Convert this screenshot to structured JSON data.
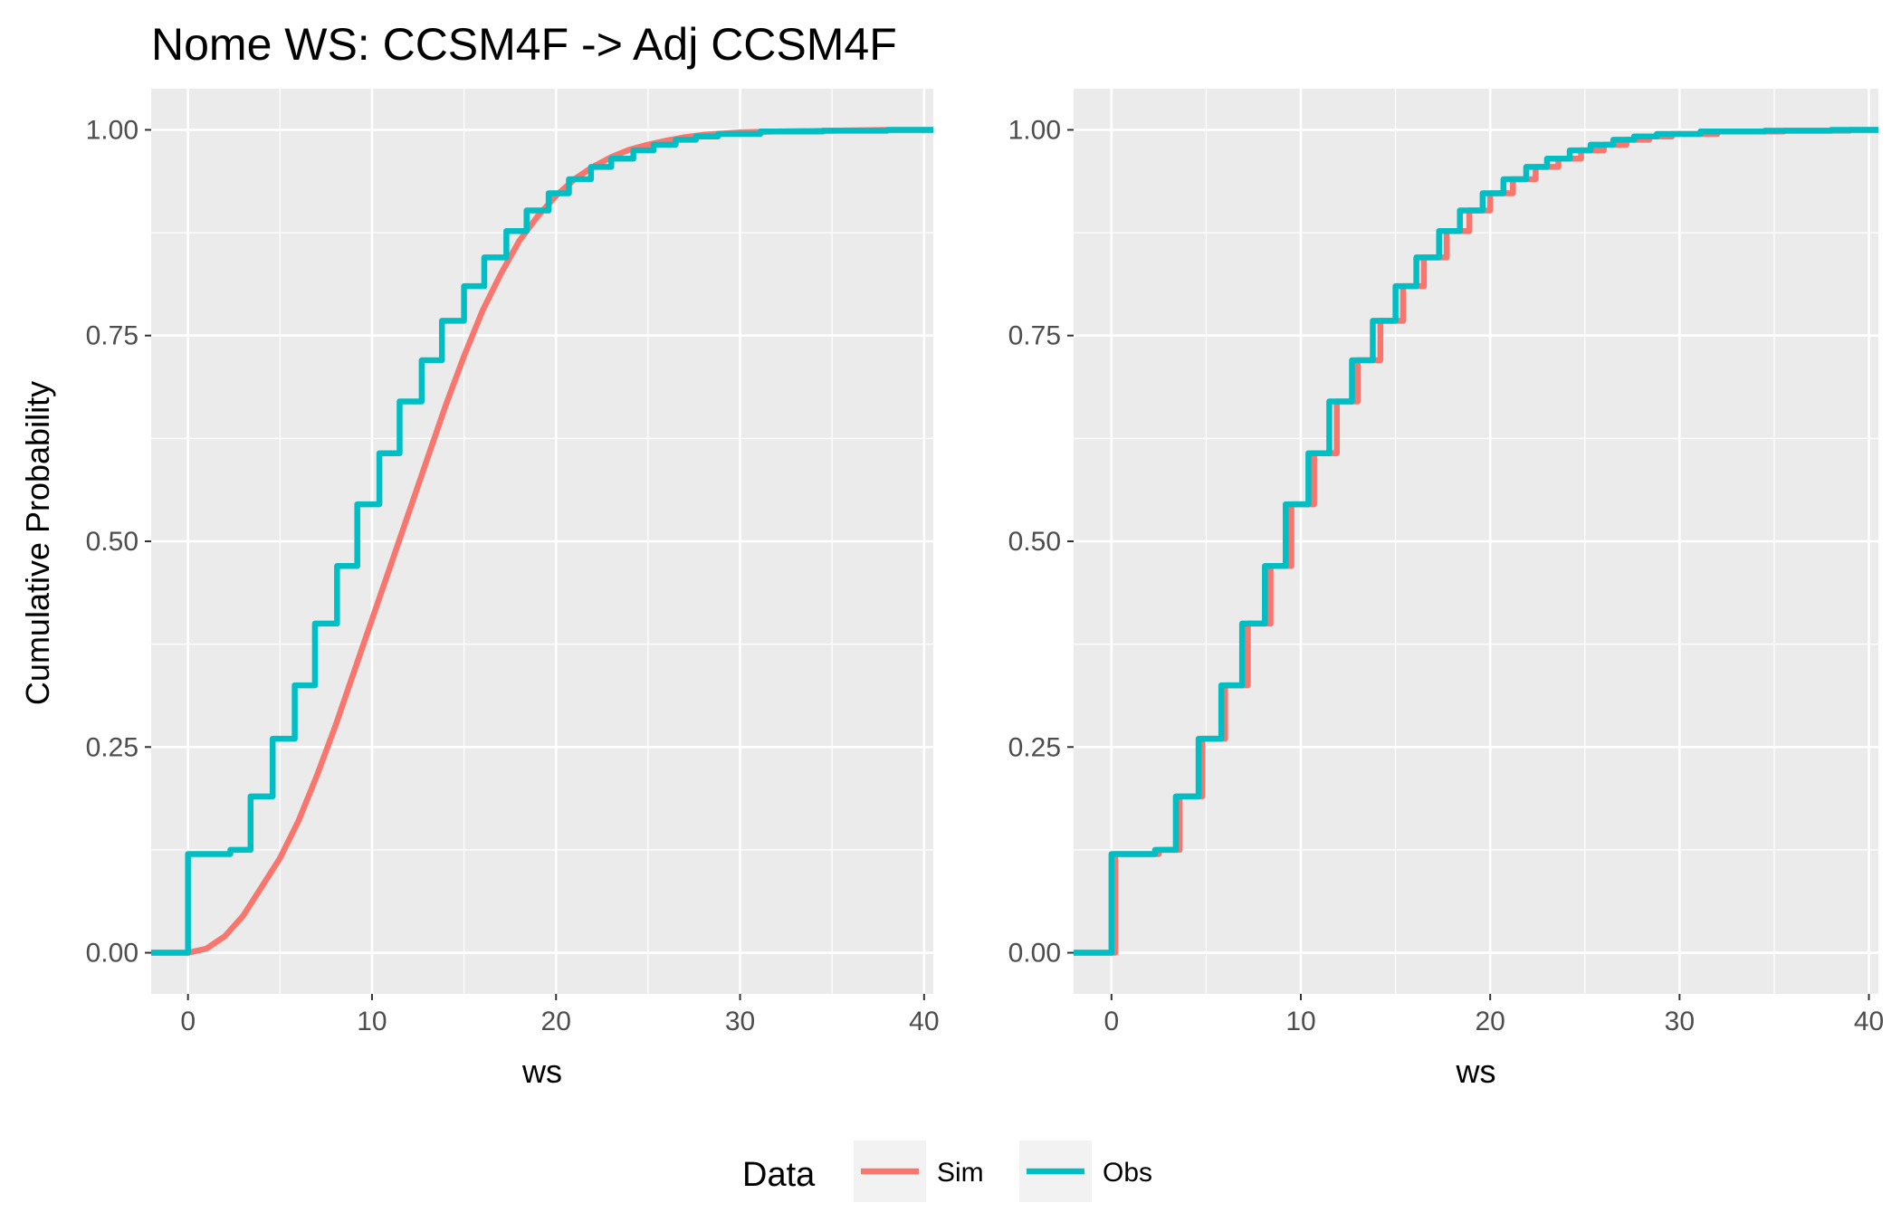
{
  "chart_data": {
    "title": "Nome WS: CCSM4F -> Adj CCSM4F",
    "ylabel": "Cumulative Probability",
    "legend": {
      "title": "Data",
      "position": "bottom",
      "entries": [
        {
          "name": "Sim",
          "color": "#F8766D"
        },
        {
          "name": "Obs",
          "color": "#00BFC4"
        }
      ]
    },
    "panels": [
      {
        "type": "line",
        "xlabel": "ws",
        "xlim": [
          -2,
          40.5
        ],
        "ylim": [
          -0.05,
          1.05
        ],
        "grid": true,
        "xticks": [
          0,
          10,
          20,
          30,
          40
        ],
        "yticks": [
          0.0,
          0.25,
          0.5,
          0.75,
          1.0
        ],
        "ytick_labels": [
          "0.00",
          "0.25",
          "0.50",
          "0.75",
          "1.00"
        ],
        "series": [
          {
            "name": "Sim",
            "style": "smooth",
            "x": [
              -2,
              0,
              1,
              2,
              3,
              4,
              5,
              6,
              7,
              8,
              9,
              10,
              11,
              12,
              13,
              14,
              15,
              16,
              17,
              18,
              19,
              20,
              21,
              22,
              23,
              24,
              25,
              26,
              27,
              28,
              30,
              32,
              35,
              38,
              40.5
            ],
            "y": [
              0,
              0,
              0.005,
              0.02,
              0.045,
              0.08,
              0.115,
              0.16,
              0.215,
              0.275,
              0.34,
              0.405,
              0.47,
              0.535,
              0.6,
              0.665,
              0.725,
              0.78,
              0.825,
              0.865,
              0.895,
              0.92,
              0.94,
              0.955,
              0.967,
              0.976,
              0.982,
              0.987,
              0.991,
              0.994,
              0.997,
              0.998,
              0.999,
              1.0,
              1.0
            ]
          },
          {
            "name": "Obs",
            "style": "step",
            "x": [
              -2,
              0,
              2.3,
              3.4,
              4.6,
              5.8,
              6.9,
              8.1,
              9.2,
              10.4,
              11.5,
              12.7,
              13.8,
              15.0,
              16.1,
              17.3,
              18.4,
              19.6,
              20.7,
              21.9,
              23.0,
              24.2,
              25.3,
              26.5,
              27.6,
              28.8,
              31.1,
              34.5,
              38.0
            ],
            "y": [
              0,
              0.12,
              0.125,
              0.19,
              0.26,
              0.325,
              0.4,
              0.47,
              0.545,
              0.607,
              0.67,
              0.72,
              0.768,
              0.81,
              0.845,
              0.877,
              0.902,
              0.923,
              0.94,
              0.955,
              0.965,
              0.975,
              0.982,
              0.988,
              0.992,
              0.995,
              0.998,
              0.999,
              1.0
            ]
          }
        ]
      },
      {
        "type": "line",
        "xlabel": "ws",
        "xlim": [
          -2,
          40.5
        ],
        "ylim": [
          -0.05,
          1.05
        ],
        "grid": true,
        "xticks": [
          0,
          10,
          20,
          30,
          40
        ],
        "yticks": [
          0.0,
          0.25,
          0.5,
          0.75,
          1.0
        ],
        "ytick_labels": [
          "0.00",
          "0.25",
          "0.50",
          "0.75",
          "1.00"
        ],
        "series": [
          {
            "name": "Sim",
            "style": "step",
            "x": [
              -2,
              0.2,
              2.5,
              3.6,
              4.8,
              6.0,
              7.2,
              8.4,
              9.5,
              10.7,
              11.9,
              13.0,
              14.2,
              15.4,
              16.5,
              17.7,
              18.9,
              20.0,
              21.2,
              22.4,
              23.6,
              24.8,
              26.0,
              27.2,
              28.4,
              29.6,
              32.0,
              35.5,
              39.0
            ],
            "y": [
              0,
              0.12,
              0.125,
              0.19,
              0.26,
              0.325,
              0.4,
              0.47,
              0.545,
              0.607,
              0.67,
              0.72,
              0.768,
              0.81,
              0.845,
              0.877,
              0.902,
              0.923,
              0.94,
              0.955,
              0.965,
              0.975,
              0.982,
              0.988,
              0.992,
              0.995,
              0.998,
              0.999,
              1.0
            ]
          },
          {
            "name": "Obs",
            "style": "step",
            "x": [
              -2,
              0,
              2.3,
              3.4,
              4.6,
              5.8,
              6.9,
              8.1,
              9.2,
              10.4,
              11.5,
              12.7,
              13.8,
              15.0,
              16.1,
              17.3,
              18.4,
              19.6,
              20.7,
              21.9,
              23.0,
              24.2,
              25.3,
              26.5,
              27.6,
              28.8,
              31.1,
              34.5,
              38.0
            ],
            "y": [
              0,
              0.12,
              0.125,
              0.19,
              0.26,
              0.325,
              0.4,
              0.47,
              0.545,
              0.607,
              0.67,
              0.72,
              0.768,
              0.81,
              0.845,
              0.877,
              0.902,
              0.923,
              0.94,
              0.955,
              0.965,
              0.975,
              0.982,
              0.988,
              0.992,
              0.995,
              0.998,
              0.999,
              1.0
            ]
          }
        ]
      }
    ]
  }
}
